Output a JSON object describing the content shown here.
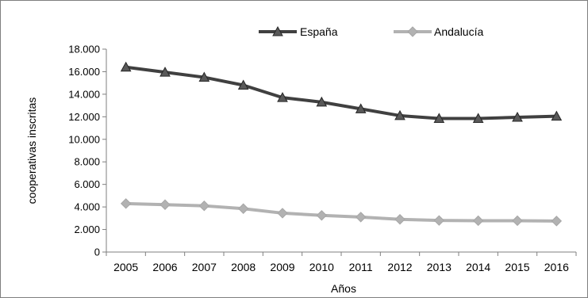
{
  "chart_data": {
    "type": "line",
    "title": "",
    "xlabel": "Años",
    "ylabel": "cooperativas inscritas",
    "x": [
      "2005",
      "2006",
      "2007",
      "2008",
      "2009",
      "2010",
      "2011",
      "2012",
      "2013",
      "2014",
      "2015",
      "2016"
    ],
    "ylim": [
      0,
      18000
    ],
    "y_ticks": [
      0,
      2000,
      4000,
      6000,
      8000,
      10000,
      12000,
      14000,
      16000,
      18000
    ],
    "y_tick_labels": [
      "0",
      "2.000",
      "4.000",
      "6.000",
      "8.000",
      "10.000",
      "12.000",
      "14.000",
      "16.000",
      "18.000"
    ],
    "grid": false,
    "legend_position": "top",
    "series": [
      {
        "name": "España",
        "color": "#404040",
        "marker": "triangle",
        "values": [
          16400,
          15950,
          15500,
          14800,
          13700,
          13300,
          12700,
          12100,
          11850,
          11850,
          11950,
          12050
        ]
      },
      {
        "name": "Andalucía",
        "color": "#b2b2b2",
        "marker": "diamond",
        "values": [
          4300,
          4200,
          4100,
          3850,
          3450,
          3250,
          3100,
          2900,
          2800,
          2780,
          2780,
          2750
        ]
      }
    ]
  }
}
